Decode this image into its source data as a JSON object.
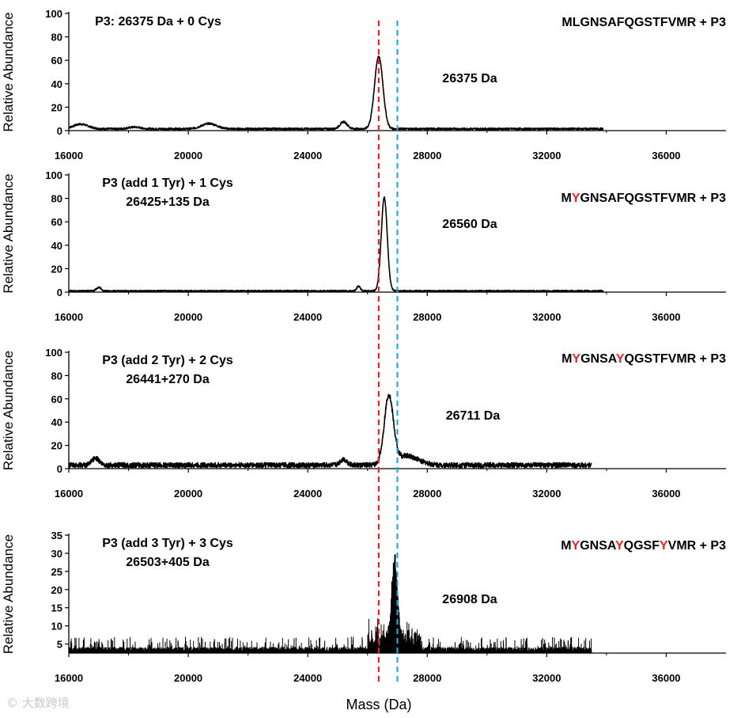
{
  "chart_data": [
    {
      "type": "line",
      "panel": 1,
      "title_lines": [
        "P3: 26375 Da + 0 Cys"
      ],
      "sequence": [
        {
          "t": "MLGNSAFQGSTFVMR + P3",
          "red": false
        }
      ],
      "peak_label": "26375 Da",
      "ylabel": "Relative Abundance",
      "xlabel": "",
      "xlim": [
        16000,
        38000
      ],
      "ylim": [
        0,
        100
      ],
      "yticks": [
        0,
        20,
        40,
        60,
        80,
        100
      ],
      "xticks": [
        16000,
        20000,
        24000,
        28000,
        32000,
        36000
      ],
      "x_end": 33900,
      "baseline": 1.5,
      "peaks": [
        {
          "x": 16400,
          "h": 4,
          "w": 250
        },
        {
          "x": 18200,
          "h": 1.5,
          "w": 200
        },
        {
          "x": 20700,
          "h": 4.5,
          "w": 250
        },
        {
          "x": 25200,
          "h": 6,
          "w": 120
        },
        {
          "x": 26375,
          "h": 62,
          "w": 140
        }
      ],
      "noise": 0.8
    },
    {
      "type": "line",
      "panel": 2,
      "title_lines": [
        "P3 (add 1 Tyr) + 1 Cys",
        "26425+135 Da"
      ],
      "sequence": [
        {
          "t": "M",
          "red": false
        },
        {
          "t": "Y",
          "red": true
        },
        {
          "t": "GNSAFQGSTFVMR + P3",
          "red": false
        }
      ],
      "peak_label": "26560 Da",
      "ylabel": "Relative Abundance",
      "xlabel": "",
      "xlim": [
        16000,
        38000
      ],
      "ylim": [
        0,
        100
      ],
      "yticks": [
        0,
        20,
        40,
        60,
        80,
        100
      ],
      "xticks": [
        16000,
        20000,
        24000,
        28000,
        32000,
        36000
      ],
      "x_end": 33900,
      "baseline": 1.0,
      "peaks": [
        {
          "x": 17000,
          "h": 3,
          "w": 80
        },
        {
          "x": 25700,
          "h": 4,
          "w": 60
        },
        {
          "x": 26560,
          "h": 80,
          "w": 100
        }
      ],
      "noise": 0.6
    },
    {
      "type": "line",
      "panel": 3,
      "title_lines": [
        "P3 (add 2 Tyr) + 2 Cys",
        "26441+270 Da"
      ],
      "sequence": [
        {
          "t": "M",
          "red": false
        },
        {
          "t": "Y",
          "red": true
        },
        {
          "t": "GNSA",
          "red": false
        },
        {
          "t": "Y",
          "red": true
        },
        {
          "t": "QGSTFVMR + P3",
          "red": false
        }
      ],
      "peak_label": "26711 Da",
      "ylabel": "Relative Abundance",
      "xlabel": "",
      "xlim": [
        16000,
        38000
      ],
      "ylim": [
        0,
        100
      ],
      "yticks": [
        0,
        20,
        40,
        60,
        80,
        100
      ],
      "xticks": [
        16000,
        20000,
        24000,
        28000,
        32000,
        36000
      ],
      "x_end": 33500,
      "baseline": 3,
      "peaks": [
        {
          "x": 16900,
          "h": 6,
          "w": 120
        },
        {
          "x": 25200,
          "h": 5,
          "w": 120
        },
        {
          "x": 26711,
          "h": 58,
          "w": 150
        },
        {
          "x": 27300,
          "h": 8,
          "w": 400
        }
      ],
      "noise": 2.2
    },
    {
      "type": "line",
      "panel": 4,
      "title_lines": [
        "P3 (add 3 Tyr) + 3 Cys",
        "26503+405 Da"
      ],
      "sequence": [
        {
          "t": "M",
          "red": false
        },
        {
          "t": "Y",
          "red": true
        },
        {
          "t": "GNSA",
          "red": false
        },
        {
          "t": "Y",
          "red": true
        },
        {
          "t": "QGSF",
          "red": false
        },
        {
          "t": "Y",
          "red": true
        },
        {
          "t": "VMR + P3",
          "red": false
        }
      ],
      "peak_label": "26908 Da",
      "ylabel": "Relative Abundance",
      "xlabel": "Mass (Da)",
      "xlim": [
        16000,
        38000
      ],
      "ylim": [
        2.5,
        35
      ],
      "yticks": [
        5,
        10,
        15,
        20,
        25,
        30,
        35
      ],
      "xticks": [
        16000,
        20000,
        24000,
        28000,
        32000,
        36000
      ],
      "x_end": 33500,
      "baseline": 3,
      "peaks": [
        {
          "x": 26908,
          "h": 22,
          "w": 90
        }
      ],
      "noise": 2.0,
      "spiky": true
    }
  ],
  "reference_lines": [
    {
      "x": 26375,
      "color": "#e0262b"
    },
    {
      "x": 27000,
      "color": "#2aa6d6"
    }
  ],
  "watermark": "© 大数跨境"
}
